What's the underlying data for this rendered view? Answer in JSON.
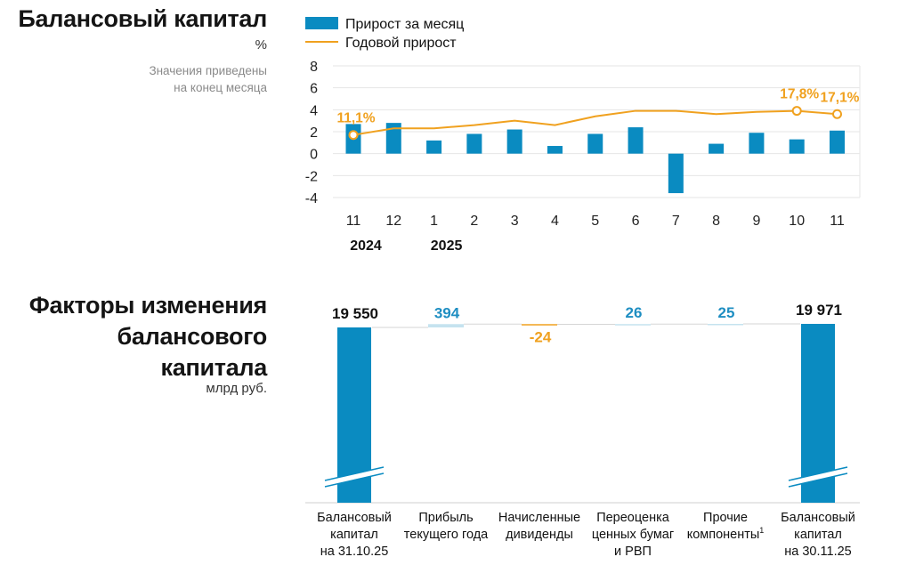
{
  "chart_data": [
    {
      "type": "bar+line",
      "title": "Балансовый капитал",
      "unit": "%",
      "note": [
        "Значения приведены",
        "на конец месяца"
      ],
      "legend": [
        "Прирост за месяц",
        "Годовой прирост"
      ],
      "categories": [
        "11",
        "12",
        "1",
        "2",
        "3",
        "4",
        "5",
        "6",
        "7",
        "8",
        "9",
        "10",
        "11"
      ],
      "years": [
        {
          "label": "2024",
          "at": 0
        },
        {
          "label": "2025",
          "at": 2
        }
      ],
      "ylim": [
        -4,
        8
      ],
      "yticks": [
        8,
        6,
        4,
        2,
        0,
        -2,
        -4
      ],
      "series": [
        {
          "name": "Прирост за месяц",
          "kind": "bar",
          "values": [
            2.7,
            2.8,
            1.2,
            1.8,
            2.2,
            0.7,
            1.8,
            2.4,
            -3.6,
            0.9,
            1.9,
            1.3,
            2.1
          ]
        },
        {
          "name": "Годовой прирост",
          "kind": "line",
          "values": [
            1.7,
            2.3,
            2.3,
            2.6,
            3.0,
            2.6,
            3.4,
            3.9,
            3.9,
            3.6,
            3.8,
            3.9,
            3.6
          ]
        }
      ],
      "labels": [
        {
          "at": 0,
          "text": "11,1%"
        },
        {
          "at": 11,
          "text": "17,8%"
        },
        {
          "at": 12,
          "text": "17,1%"
        }
      ],
      "colors": {
        "bar": "#0a8bc1",
        "line": "#f0a11f"
      }
    },
    {
      "type": "waterfall",
      "title": "Факторы изменения балансового капитала",
      "title_lines": [
        "Факторы изменения",
        "балансового",
        "капитала"
      ],
      "unit": "млрд руб.",
      "items": [
        {
          "label": [
            "Балансовый",
            "капитал",
            "на 31.10.25"
          ],
          "value": 19550,
          "display": "19 550",
          "kind": "total"
        },
        {
          "label": [
            "Прибыль",
            "текущего года"
          ],
          "value": 394,
          "display": "394",
          "kind": "delta"
        },
        {
          "label": [
            "Начисленные",
            "дивиденды"
          ],
          "value": -24,
          "display": "-24",
          "kind": "delta"
        },
        {
          "label": [
            "Переоценка",
            "ценных бумаг",
            "и РВП"
          ],
          "value": 26,
          "display": "26",
          "kind": "delta"
        },
        {
          "label": [
            "Прочие",
            "компоненты"
          ],
          "value": 25,
          "display": "25",
          "kind": "delta",
          "footnote": "1"
        },
        {
          "label": [
            "Балансовый",
            "капитал",
            "на 30.11.25"
          ],
          "value": 19971,
          "display": "19 971",
          "kind": "total"
        }
      ],
      "colors": {
        "total": "#0a8bc1",
        "positive": "#c5e3ef",
        "negative": "#f0a11f",
        "pos_text": "#1e8ec2"
      }
    }
  ]
}
